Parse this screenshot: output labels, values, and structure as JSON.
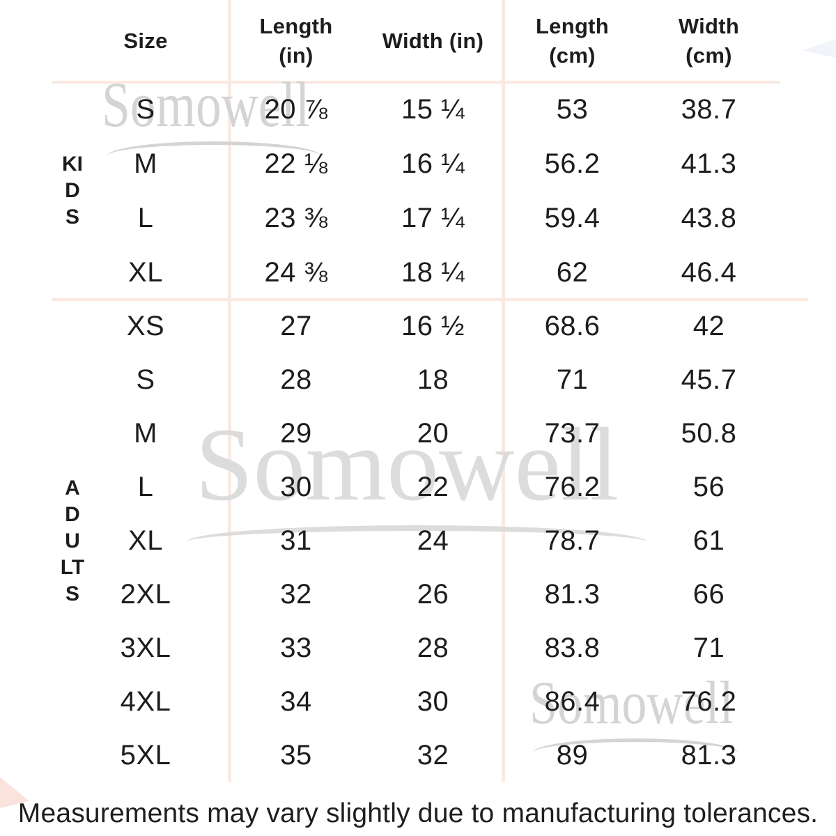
{
  "watermark": {
    "text": "Somowell"
  },
  "colors": {
    "divider": "#fbe9e0",
    "text": "#1d1d1d",
    "watermark": "#d4d4d4"
  },
  "table": {
    "headers": {
      "size": "Size",
      "length_in": "Length\n(in)",
      "width_in": "Width (in)",
      "length_cm": "Length\n(cm)",
      "width_cm": "Width\n(cm)"
    },
    "sections": [
      {
        "group": "KIDS",
        "rows": [
          {
            "size": "S",
            "length_in": "20 ⅞",
            "width_in": "15 ¼",
            "length_cm": "53",
            "width_cm": "38.7"
          },
          {
            "size": "M",
            "length_in": "22 ⅛",
            "width_in": "16 ¼",
            "length_cm": "56.2",
            "width_cm": "41.3"
          },
          {
            "size": "L",
            "length_in": "23 ⅜",
            "width_in": "17 ¼",
            "length_cm": "59.4",
            "width_cm": "43.8"
          },
          {
            "size": "XL",
            "length_in": "24 ⅜",
            "width_in": "18 ¼",
            "length_cm": "62",
            "width_cm": "46.4"
          }
        ]
      },
      {
        "group": "ADULTS",
        "rows": [
          {
            "size": "XS",
            "length_in": "27",
            "width_in": "16 ½",
            "length_cm": "68.6",
            "width_cm": "42"
          },
          {
            "size": "S",
            "length_in": "28",
            "width_in": "18",
            "length_cm": "71",
            "width_cm": "45.7"
          },
          {
            "size": "M",
            "length_in": "29",
            "width_in": "20",
            "length_cm": "73.7",
            "width_cm": "50.8"
          },
          {
            "size": "L",
            "length_in": "30",
            "width_in": "22",
            "length_cm": "76.2",
            "width_cm": "56"
          },
          {
            "size": "XL",
            "length_in": "31",
            "width_in": "24",
            "length_cm": "78.7",
            "width_cm": "61"
          },
          {
            "size": "2XL",
            "length_in": "32",
            "width_in": "26",
            "length_cm": "81.3",
            "width_cm": "66"
          },
          {
            "size": "3XL",
            "length_in": "33",
            "width_in": "28",
            "length_cm": "83.8",
            "width_cm": "71"
          },
          {
            "size": "4XL",
            "length_in": "34",
            "width_in": "30",
            "length_cm": "86.4",
            "width_cm": "76.2"
          },
          {
            "size": "5XL",
            "length_in": "35",
            "width_in": "32",
            "length_cm": "89",
            "width_cm": "81.3"
          }
        ]
      }
    ]
  },
  "footer": {
    "note": "Measurements may vary slightly due to manufacturing tolerances."
  }
}
